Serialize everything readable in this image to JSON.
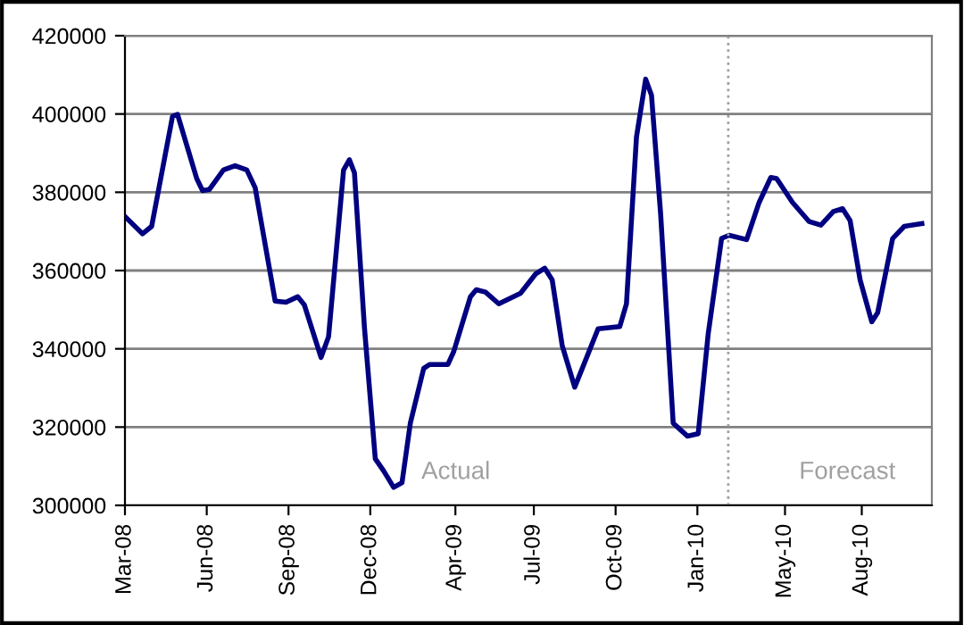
{
  "chart_data": {
    "type": "line",
    "x": [
      "2008-03-02",
      "2008-03-22",
      "2008-04-02",
      "2008-04-27",
      "2008-05-03",
      "2008-05-26",
      "2008-06-02",
      "2008-06-10",
      "2008-06-27",
      "2008-07-11",
      "2008-07-25",
      "2008-08-04",
      "2008-08-28",
      "2008-09-10",
      "2008-09-24",
      "2008-10-02",
      "2008-10-22",
      "2008-10-31",
      "2008-11-18",
      "2008-11-25",
      "2008-12-01",
      "2008-12-13",
      "2008-12-26",
      "2009-01-05",
      "2009-01-17",
      "2009-01-27",
      "2009-02-06",
      "2009-02-22",
      "2009-03-01",
      "2009-03-23",
      "2009-03-30",
      "2009-04-19",
      "2009-04-26",
      "2009-05-07",
      "2009-05-23",
      "2009-06-18",
      "2009-07-06",
      "2009-07-17",
      "2009-07-26",
      "2009-08-07",
      "2009-08-22",
      "2009-09-01",
      "2009-09-19",
      "2009-10-15",
      "2009-10-23",
      "2009-11-04",
      "2009-11-15",
      "2009-11-22",
      "2009-12-03",
      "2009-12-18",
      "2010-01-04",
      "2010-01-17",
      "2010-01-29",
      "2010-02-14",
      "2010-02-23",
      "2010-03-16",
      "2010-03-31",
      "2010-04-14",
      "2010-04-21",
      "2010-05-10",
      "2010-05-30",
      "2010-06-13",
      "2010-06-28",
      "2010-07-09",
      "2010-07-18",
      "2010-07-30",
      "2010-08-13",
      "2010-08-20",
      "2010-09-07",
      "2010-09-21",
      "2010-10-12"
    ],
    "series": [
      {
        "color": "#000080",
        "values": [
          373600,
          369400,
          371300,
          399400,
          399900,
          383500,
          380400,
          380700,
          385700,
          386800,
          385700,
          381200,
          352200,
          351900,
          353300,
          351200,
          337800,
          343100,
          385700,
          388300,
          385000,
          345400,
          311900,
          308800,
          304600,
          305800,
          321000,
          335000,
          336000,
          336000,
          339300,
          353300,
          355100,
          354500,
          351500,
          354200,
          359100,
          360600,
          357600,
          340800,
          330200,
          335500,
          345100,
          345700,
          351500,
          394100,
          408900,
          404800,
          374300,
          321000,
          317700,
          318300,
          343900,
          368200,
          369000,
          367900,
          377400,
          383800,
          383500,
          377400,
          372500,
          371600,
          375100,
          375800,
          372800,
          357600,
          346900,
          349200,
          368200,
          371300,
          372000
        ]
      }
    ],
    "xlim": [
      "2008-03-01",
      "2010-10-24"
    ],
    "xticks": [
      {
        "value": "2008-03-01",
        "label": "Mar-08"
      },
      {
        "value": "2008-06-07",
        "label": "Jun-08"
      },
      {
        "value": "2008-09-13",
        "label": "Sep-08"
      },
      {
        "value": "2008-12-20",
        "label": "Dec-08"
      },
      {
        "value": "2009-04-01",
        "label": "Apr-09"
      },
      {
        "value": "2009-07-04",
        "label": "Jul-09"
      },
      {
        "value": "2009-10-10",
        "label": "Oct-09"
      },
      {
        "value": "2010-01-16",
        "label": "Jan-10"
      },
      {
        "value": "2010-05-01",
        "label": "May-10"
      },
      {
        "value": "2010-08-01",
        "label": "Aug-10"
      }
    ],
    "ylim": [
      300000,
      420000
    ],
    "yticks": [
      300000,
      320000,
      340000,
      360000,
      380000,
      400000,
      420000
    ],
    "grid": "y",
    "ref_lines": [
      {
        "axis": "x",
        "value": "2010-02-22",
        "color": "#a0a0a0",
        "line_style": "dotted"
      }
    ],
    "annotations": [
      "Actual",
      "Forecast"
    ],
    "marker": "none",
    "line_style": "solid"
  }
}
